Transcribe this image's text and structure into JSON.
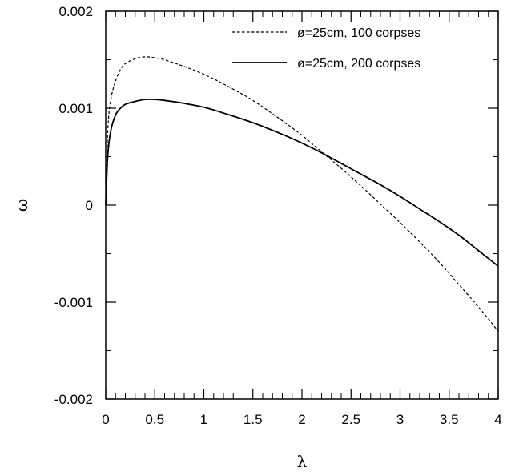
{
  "chart_data": {
    "type": "line",
    "xlabel": "λ",
    "ylabel": "ω",
    "xlim": [
      0,
      4
    ],
    "ylim": [
      -0.002,
      0.002
    ],
    "x_ticks": [
      "0",
      "0.5",
      "1",
      "1.5",
      "2",
      "2.5",
      "3",
      "3.5",
      "4"
    ],
    "y_ticks": [
      "0.002",
      "0.001",
      "0",
      "-0.001",
      "-0.002"
    ],
    "grid": false,
    "legend_position": "top-right",
    "series": [
      {
        "name": "ø=25cm, 100 corpses",
        "style": "dashed",
        "color": "#000000",
        "x": [
          0,
          0.02,
          0.05,
          0.1,
          0.15,
          0.2,
          0.3,
          0.4,
          0.5,
          0.6,
          0.8,
          1.0,
          1.2,
          1.5,
          1.8,
          2.0,
          2.2,
          2.4,
          2.6,
          2.8,
          3.0,
          3.2,
          3.4,
          3.6,
          3.8,
          4.0
        ],
        "values": [
          0,
          0.00075,
          0.00108,
          0.00128,
          0.0014,
          0.00146,
          0.00151,
          0.00153,
          0.00152,
          0.0015,
          0.00143,
          0.00135,
          0.00125,
          0.00108,
          0.00087,
          0.00072,
          0.00055,
          0.00038,
          0.0002,
          1e-05,
          -0.00018,
          -0.00038,
          -0.00059,
          -0.00082,
          -0.00105,
          -0.0013
        ]
      },
      {
        "name": "ø=25cm, 200 corpses",
        "style": "solid",
        "color": "#000000",
        "x": [
          0,
          0.02,
          0.05,
          0.1,
          0.15,
          0.2,
          0.3,
          0.4,
          0.5,
          0.6,
          0.8,
          1.0,
          1.2,
          1.5,
          1.8,
          2.0,
          2.2,
          2.4,
          2.6,
          2.8,
          3.0,
          3.2,
          3.4,
          3.6,
          3.8,
          4.0
        ],
        "values": [
          0,
          0.0005,
          0.00076,
          0.00093,
          0.001,
          0.00104,
          0.00107,
          0.00109,
          0.00109,
          0.00108,
          0.00105,
          0.00101,
          0.00095,
          0.00085,
          0.00073,
          0.00064,
          0.00054,
          0.00043,
          0.00032,
          0.00021,
          9e-05,
          -4e-05,
          -0.00017,
          -0.00031,
          -0.00047,
          -0.00063
        ]
      }
    ]
  }
}
